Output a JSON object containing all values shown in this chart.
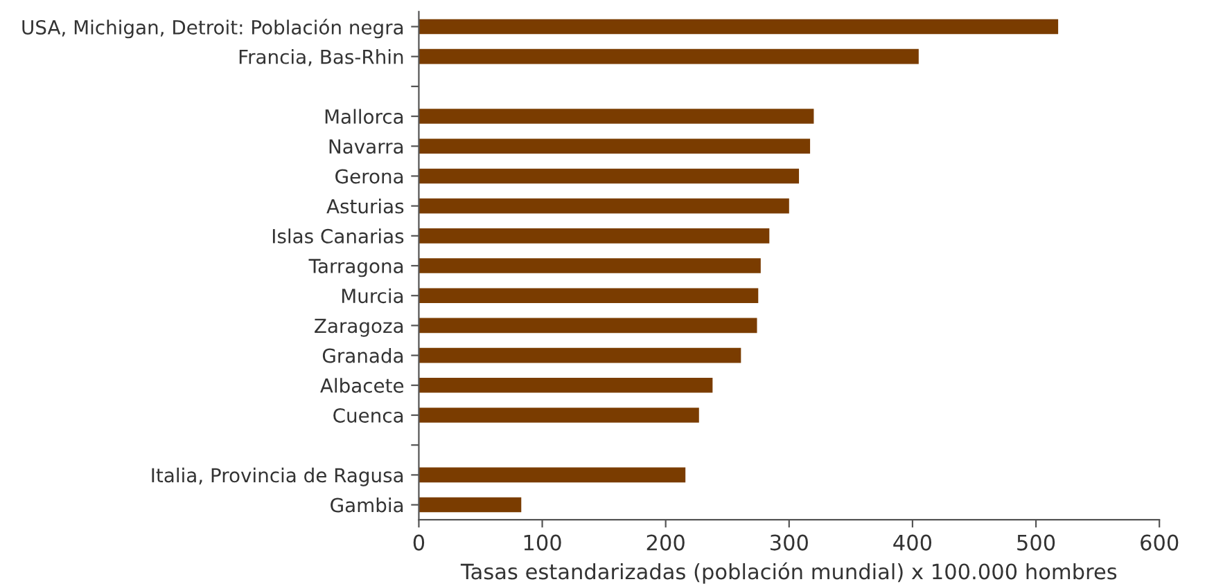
{
  "chart_data": {
    "type": "bar",
    "orientation": "horizontal",
    "xlabel": "Tasas estandarizadas (población mundial) x 100.000 hombres",
    "categories": [
      "USA, Michigan, Detroit: Población negra",
      "Francia, Bas-Rhin",
      null,
      "Mallorca",
      "Navarra",
      "Gerona",
      "Asturias",
      "Islas Canarias",
      "Tarragona",
      "Murcia",
      "Zaragoza",
      "Granada",
      "Albacete",
      "Cuenca",
      null,
      "Italia, Provincia de Ragusa",
      "Gambia"
    ],
    "values": [
      518,
      405,
      null,
      320,
      317,
      308,
      300,
      284,
      277,
      275,
      274,
      261,
      238,
      227,
      null,
      216,
      83
    ],
    "color": "#7a3c00",
    "xlim": [
      0,
      600
    ],
    "xticks": [
      0,
      100,
      200,
      300,
      400,
      500,
      600
    ],
    "grid": false,
    "legend": false
  }
}
